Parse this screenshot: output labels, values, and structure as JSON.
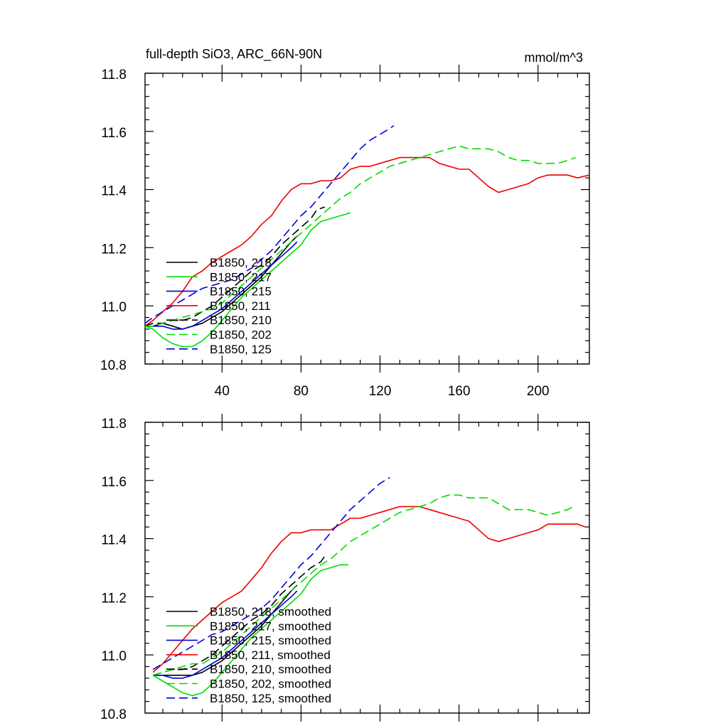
{
  "figure": {
    "title": "full-depth SiO3, ARC_66N-90N",
    "units": "mmol/m^3"
  },
  "chart_data": [
    {
      "type": "line",
      "title": "full-depth SiO3, ARC_66N-90N",
      "units_label": "mmol/m^3",
      "xlabel": "",
      "ylabel": "",
      "xlim": [
        1,
        226
      ],
      "ylim": [
        10.8,
        11.8
      ],
      "xticks": [
        40,
        80,
        120,
        160,
        200
      ],
      "xtick_labels": [
        "40",
        "80",
        "120",
        "160",
        "200"
      ],
      "yticks": [
        10.8,
        11.0,
        11.2,
        11.4,
        11.6,
        11.8
      ],
      "ytick_labels": [
        "10.8",
        "11.0",
        "11.2",
        "11.4",
        "11.6",
        "11.8"
      ],
      "grid": false,
      "legend_position": "bottom-left",
      "series": [
        {
          "name": "B1850, 218",
          "color": "#000000",
          "dash": "solid",
          "x": [
            1,
            5,
            10,
            15,
            20,
            25,
            30,
            35,
            40,
            45,
            50,
            55,
            60,
            65,
            70,
            75,
            78
          ],
          "y": [
            10.93,
            10.93,
            10.94,
            10.93,
            10.92,
            10.93,
            10.94,
            10.96,
            10.98,
            11.01,
            11.04,
            11.07,
            11.1,
            11.14,
            11.18,
            11.22,
            11.24
          ]
        },
        {
          "name": "B1850, 217",
          "color": "#00dd00",
          "dash": "solid",
          "x": [
            1,
            5,
            10,
            15,
            20,
            25,
            30,
            35,
            40,
            45,
            50,
            55,
            60,
            65,
            70,
            75,
            80,
            85,
            90,
            95,
            100,
            105
          ],
          "y": [
            10.93,
            10.92,
            10.89,
            10.87,
            10.86,
            10.86,
            10.88,
            10.91,
            10.95,
            10.99,
            11.03,
            11.06,
            11.09,
            11.12,
            11.15,
            11.18,
            11.21,
            11.26,
            11.29,
            11.3,
            11.31,
            11.32
          ]
        },
        {
          "name": "B1850, 215",
          "color": "#0000dd",
          "dash": "solid",
          "x": [
            1,
            5,
            10,
            15,
            20,
            25,
            30,
            35,
            40,
            45,
            50,
            55,
            60,
            65,
            70,
            75,
            78
          ],
          "y": [
            10.93,
            10.93,
            10.93,
            10.92,
            10.92,
            10.93,
            10.95,
            10.97,
            10.99,
            11.02,
            11.05,
            11.08,
            11.11,
            11.14,
            11.17,
            11.2,
            11.22
          ]
        },
        {
          "name": "B1850, 211",
          "color": "#ee0000",
          "dash": "solid",
          "x": [
            1,
            5,
            10,
            15,
            20,
            25,
            30,
            35,
            40,
            45,
            50,
            55,
            60,
            65,
            70,
            75,
            80,
            85,
            90,
            95,
            100,
            105,
            110,
            115,
            120,
            125,
            130,
            135,
            140,
            145,
            150,
            155,
            160,
            165,
            170,
            175,
            180,
            185,
            190,
            195,
            200,
            205,
            210,
            215,
            220,
            226
          ],
          "y": [
            10.93,
            10.95,
            10.98,
            11.01,
            11.05,
            11.1,
            11.12,
            11.15,
            11.17,
            11.19,
            11.21,
            11.24,
            11.28,
            11.31,
            11.36,
            11.4,
            11.42,
            11.42,
            11.43,
            11.43,
            11.44,
            11.47,
            11.48,
            11.48,
            11.49,
            11.5,
            11.51,
            11.51,
            11.51,
            11.51,
            11.49,
            11.48,
            11.47,
            11.47,
            11.44,
            11.41,
            11.39,
            11.4,
            11.41,
            11.42,
            11.44,
            11.45,
            11.45,
            11.45,
            11.44,
            11.45
          ]
        },
        {
          "name": "B1850, 210",
          "color": "#000000",
          "dash": "dashed",
          "x": [
            1,
            5,
            10,
            15,
            20,
            25,
            30,
            35,
            40,
            45,
            50,
            55,
            60,
            65,
            70,
            75,
            80,
            85,
            88,
            92
          ],
          "y": [
            10.93,
            10.94,
            10.94,
            10.95,
            10.95,
            10.96,
            10.98,
            11.0,
            11.03,
            11.06,
            11.09,
            11.12,
            11.14,
            11.17,
            11.21,
            11.24,
            11.27,
            11.3,
            11.33,
            11.34
          ]
        },
        {
          "name": "B1850, 202",
          "color": "#00dd00",
          "dash": "dashed",
          "x": [
            1,
            5,
            10,
            15,
            20,
            25,
            30,
            35,
            40,
            45,
            50,
            55,
            60,
            65,
            70,
            75,
            80,
            85,
            90,
            95,
            100,
            105,
            110,
            115,
            120,
            125,
            130,
            135,
            140,
            145,
            150,
            155,
            160,
            165,
            170,
            175,
            180,
            185,
            190,
            195,
            200,
            205,
            210,
            215,
            219
          ],
          "y": [
            10.93,
            10.93,
            10.94,
            10.95,
            10.96,
            10.97,
            10.98,
            10.99,
            11.01,
            11.04,
            11.07,
            11.1,
            11.13,
            11.16,
            11.19,
            11.22,
            11.25,
            11.28,
            11.31,
            11.34,
            11.37,
            11.39,
            11.42,
            11.44,
            11.46,
            11.48,
            11.49,
            11.5,
            11.51,
            11.52,
            11.53,
            11.54,
            11.55,
            11.54,
            11.54,
            11.54,
            11.53,
            11.51,
            11.5,
            11.5,
            11.49,
            11.49,
            11.49,
            11.5,
            11.51
          ]
        },
        {
          "name": "B1850, 125",
          "color": "#0000dd",
          "dash": "dashed",
          "x": [
            1,
            5,
            10,
            15,
            20,
            25,
            30,
            35,
            40,
            45,
            50,
            55,
            60,
            65,
            70,
            75,
            80,
            85,
            90,
            95,
            100,
            105,
            110,
            115,
            120,
            125,
            127
          ],
          "y": [
            10.94,
            10.96,
            10.98,
            11.0,
            11.02,
            11.04,
            11.06,
            11.07,
            11.08,
            11.09,
            11.11,
            11.13,
            11.16,
            11.19,
            11.23,
            11.27,
            11.31,
            11.34,
            11.38,
            11.42,
            11.46,
            11.5,
            11.54,
            11.57,
            11.59,
            11.61,
            11.62
          ]
        }
      ]
    },
    {
      "type": "line",
      "title": "",
      "xlabel": "",
      "ylabel": "",
      "xlim": [
        1,
        226
      ],
      "ylim": [
        10.8,
        11.8
      ],
      "xticks": [
        40,
        80,
        120,
        160,
        200
      ],
      "xtick_labels": [],
      "yticks": [
        10.8,
        11.0,
        11.2,
        11.4,
        11.6,
        11.8
      ],
      "ytick_labels": [
        "10.8",
        "11.0",
        "11.2",
        "11.4",
        "11.6",
        "11.8"
      ],
      "grid": false,
      "legend_position": "bottom-left",
      "series": [
        {
          "name": "B1850, 218, smoothed",
          "color": "#000000",
          "dash": "solid",
          "x": [
            5,
            10,
            15,
            20,
            25,
            30,
            35,
            40,
            45,
            50,
            55,
            60,
            65,
            70,
            75,
            78
          ],
          "y": [
            10.93,
            10.93,
            10.93,
            10.93,
            10.93,
            10.94,
            10.96,
            10.98,
            11.01,
            11.04,
            11.07,
            11.1,
            11.14,
            11.18,
            11.22,
            11.24
          ]
        },
        {
          "name": "B1850, 217, smoothed",
          "color": "#00dd00",
          "dash": "solid",
          "x": [
            5,
            10,
            15,
            20,
            25,
            30,
            35,
            40,
            45,
            50,
            55,
            60,
            65,
            70,
            75,
            80,
            85,
            90,
            95,
            100,
            104
          ],
          "y": [
            10.93,
            10.91,
            10.89,
            10.87,
            10.86,
            10.87,
            10.9,
            10.94,
            10.98,
            11.02,
            11.06,
            11.09,
            11.12,
            11.15,
            11.18,
            11.21,
            11.26,
            11.29,
            11.3,
            11.31,
            11.31
          ]
        },
        {
          "name": "B1850, 215, smoothed",
          "color": "#0000dd",
          "dash": "solid",
          "x": [
            5,
            10,
            15,
            20,
            25,
            30,
            35,
            40,
            45,
            50,
            55,
            60,
            65,
            70,
            75,
            78
          ],
          "y": [
            10.93,
            10.93,
            10.92,
            10.92,
            10.93,
            10.95,
            10.97,
            10.99,
            11.02,
            11.05,
            11.08,
            11.11,
            11.14,
            11.17,
            11.2,
            11.22
          ]
        },
        {
          "name": "B1850, 211, smoothed",
          "color": "#ee0000",
          "dash": "solid",
          "x": [
            5,
            10,
            15,
            20,
            25,
            30,
            35,
            40,
            45,
            50,
            55,
            60,
            65,
            70,
            75,
            80,
            85,
            90,
            95,
            100,
            105,
            110,
            115,
            120,
            125,
            130,
            135,
            140,
            145,
            150,
            155,
            160,
            165,
            170,
            175,
            180,
            185,
            190,
            195,
            200,
            205,
            210,
            215,
            220,
            224
          ],
          "y": [
            10.94,
            10.97,
            11.01,
            11.05,
            11.09,
            11.12,
            11.15,
            11.18,
            11.2,
            11.22,
            11.26,
            11.3,
            11.35,
            11.39,
            11.42,
            11.42,
            11.43,
            11.43,
            11.43,
            11.45,
            11.47,
            11.47,
            11.48,
            11.49,
            11.5,
            11.51,
            11.51,
            11.51,
            11.5,
            11.49,
            11.48,
            11.47,
            11.46,
            11.43,
            11.4,
            11.39,
            11.4,
            11.41,
            11.42,
            11.43,
            11.45,
            11.45,
            11.45,
            11.45,
            11.44
          ]
        },
        {
          "name": "B1850, 210, smoothed",
          "color": "#000000",
          "dash": "dashed",
          "x": [
            5,
            10,
            15,
            20,
            25,
            30,
            35,
            40,
            45,
            50,
            55,
            60,
            65,
            70,
            75,
            80,
            85,
            90,
            92
          ],
          "y": [
            10.93,
            10.94,
            10.95,
            10.95,
            10.96,
            10.98,
            11.0,
            11.03,
            11.06,
            11.09,
            11.12,
            11.14,
            11.17,
            11.21,
            11.24,
            11.27,
            11.3,
            11.32,
            11.34
          ]
        },
        {
          "name": "B1850, 202, smoothed",
          "color": "#00dd00",
          "dash": "dashed",
          "x": [
            5,
            10,
            15,
            20,
            25,
            30,
            35,
            40,
            45,
            50,
            55,
            60,
            65,
            70,
            75,
            80,
            85,
            90,
            95,
            100,
            105,
            110,
            115,
            120,
            125,
            130,
            135,
            140,
            145,
            150,
            155,
            160,
            165,
            170,
            175,
            180,
            185,
            190,
            195,
            200,
            205,
            210,
            215,
            218
          ],
          "y": [
            10.93,
            10.94,
            10.95,
            10.96,
            10.97,
            10.97,
            10.99,
            11.01,
            11.04,
            11.07,
            11.1,
            11.13,
            11.16,
            11.19,
            11.22,
            11.25,
            11.28,
            11.31,
            11.33,
            11.36,
            11.39,
            11.41,
            11.43,
            11.45,
            11.47,
            11.49,
            11.5,
            11.51,
            11.52,
            11.54,
            11.55,
            11.55,
            11.54,
            11.54,
            11.54,
            11.52,
            11.5,
            11.5,
            11.5,
            11.49,
            11.48,
            11.49,
            11.5,
            11.51
          ]
        },
        {
          "name": "B1850, 125, smoothed",
          "color": "#0000dd",
          "dash": "dashed",
          "x": [
            5,
            10,
            15,
            20,
            25,
            30,
            35,
            40,
            45,
            50,
            55,
            60,
            65,
            70,
            75,
            80,
            85,
            90,
            95,
            100,
            105,
            110,
            115,
            120,
            125
          ],
          "y": [
            10.95,
            10.97,
            10.99,
            11.01,
            11.03,
            11.05,
            11.07,
            11.08,
            11.1,
            11.12,
            11.14,
            11.16,
            11.19,
            11.23,
            11.27,
            11.31,
            11.34,
            11.38,
            11.42,
            11.46,
            11.5,
            11.53,
            11.56,
            11.59,
            11.61
          ]
        }
      ]
    }
  ]
}
